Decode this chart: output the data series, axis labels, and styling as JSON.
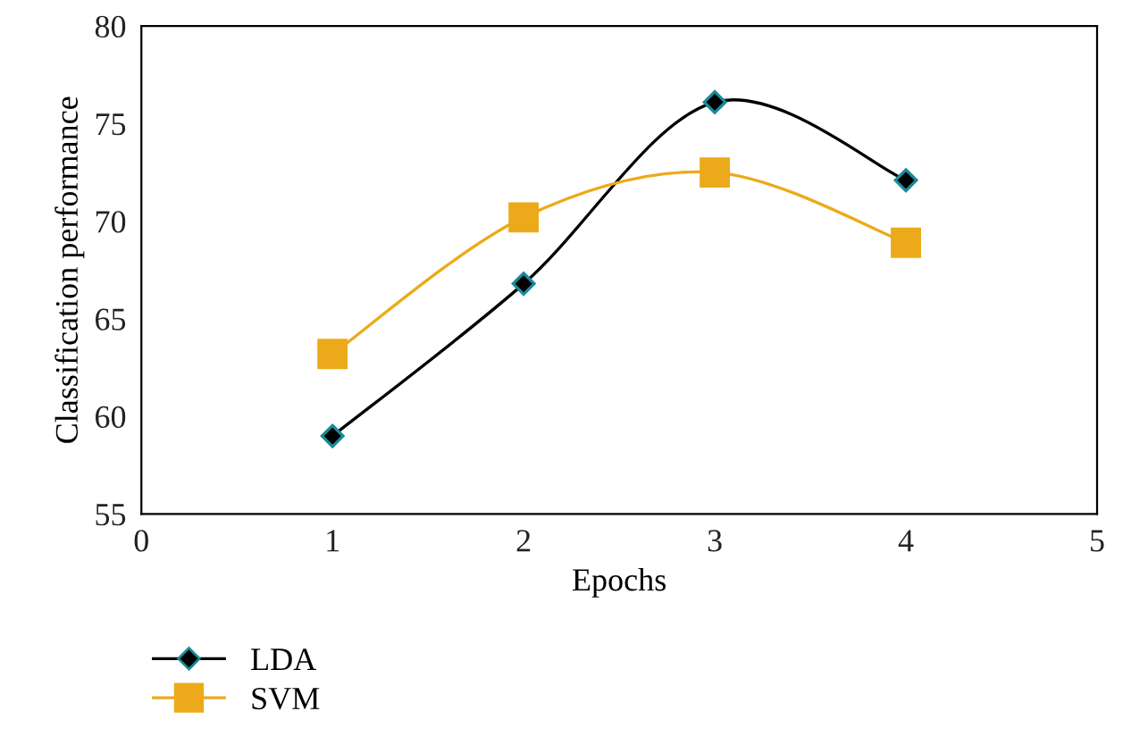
{
  "chart_data": {
    "type": "line",
    "xlabel": "Epochs",
    "ylabel": "Classification performance",
    "x": [
      1,
      2,
      3,
      4
    ],
    "xlim": [
      0,
      5
    ],
    "xticks": [
      0,
      1,
      2,
      3,
      4,
      5
    ],
    "ylim": [
      55,
      80
    ],
    "yticks": [
      55,
      60,
      65,
      70,
      75,
      80
    ],
    "grid": false,
    "legend": "bottom left",
    "series": [
      {
        "name": "LDA",
        "color": "#000000",
        "marker": "diamond",
        "values": [
          59.0,
          66.8,
          76.1,
          72.1
        ]
      },
      {
        "name": "SVM",
        "color": "#ecaa1a",
        "marker": "square",
        "values": [
          63.2,
          70.2,
          72.5,
          68.9
        ]
      }
    ]
  }
}
